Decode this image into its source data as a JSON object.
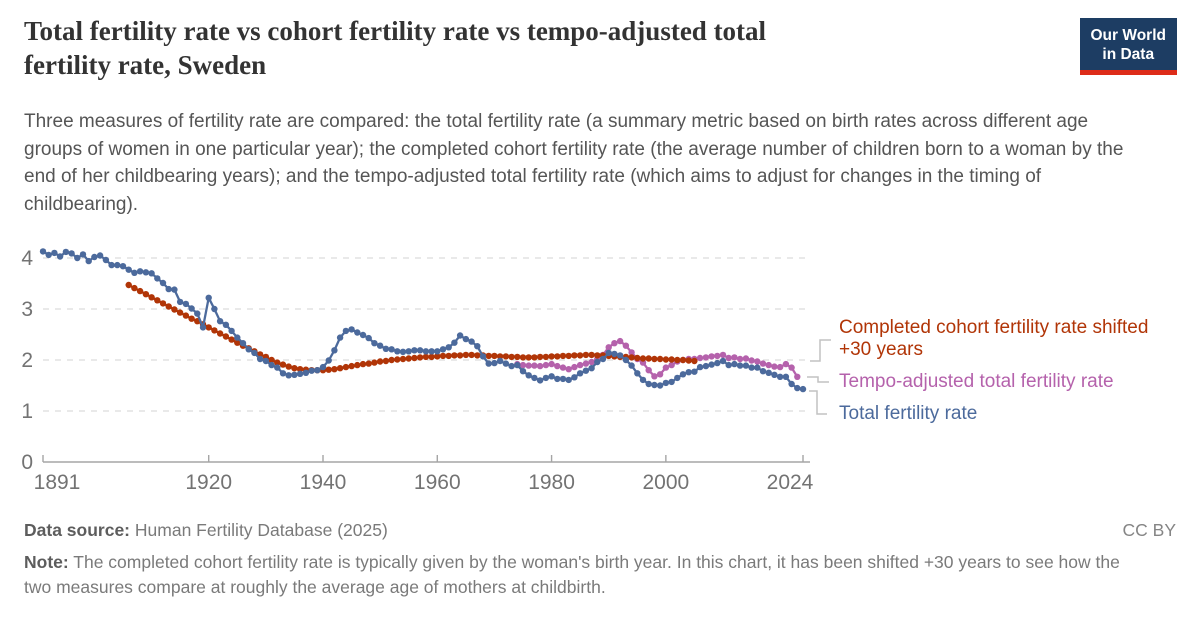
{
  "header": {
    "title_line1": "Total fertility rate vs cohort fertility rate vs tempo-adjusted total",
    "title_line2": "fertility rate, Sweden",
    "subtitle": "Three measures of fertility rate are compared: the total fertility rate (a summary metric based on birth rates across different age groups of women in one particular year); the completed cohort fertility rate (the average number of children born to a woman by the end of her childbearing years); and the tempo-adjusted total fertility rate (which aims to adjust for changes in the timing of childbearing)."
  },
  "logo": {
    "line1": "Our World",
    "line2": "in Data",
    "bg_color": "#1d3d63",
    "bar_color": "#dd2c19"
  },
  "footer": {
    "data_source_label": "Data source:",
    "data_source": "Human Fertility Database (2025)",
    "license": "CC BY",
    "note_label": "Note:",
    "note": "The completed cohort fertility rate is typically given by the woman's birth year. In this chart, it has been shifted +30 years to see how the two measures compare at roughly the average age of mothers at childbirth."
  },
  "chart_data": {
    "type": "line",
    "title": "Total fertility rate vs cohort fertility rate vs tempo-adjusted total fertility rate, Sweden",
    "xlabel": "",
    "ylabel": "",
    "x_range": [
      1891,
      2024
    ],
    "ylim": [
      0,
      4.2
    ],
    "x_ticks": [
      1891,
      1920,
      1940,
      1960,
      1980,
      2000,
      2024
    ],
    "y_ticks": [
      0,
      1,
      2,
      3,
      4
    ],
    "grid": true,
    "legend_position": "right",
    "legend": [
      {
        "label": "Completed cohort fertility rate shifted +30 years",
        "color": "#b13507"
      },
      {
        "label": "Tempo-adjusted total fertility rate",
        "color": "#b562ac"
      },
      {
        "label": "Total fertility rate",
        "color": "#4c6a9c"
      }
    ],
    "series": [
      {
        "name": "Tempo-adjusted total fertility rate",
        "color": "#b562ac",
        "points": [
          [
            1974,
            1.92
          ],
          [
            1975,
            1.9
          ],
          [
            1976,
            1.89
          ],
          [
            1977,
            1.89
          ],
          [
            1978,
            1.88
          ],
          [
            1979,
            1.9
          ],
          [
            1980,
            1.92
          ],
          [
            1981,
            1.88
          ],
          [
            1982,
            1.85
          ],
          [
            1983,
            1.82
          ],
          [
            1984,
            1.86
          ],
          [
            1985,
            1.9
          ],
          [
            1986,
            1.93
          ],
          [
            1987,
            1.96
          ],
          [
            1988,
            2.02
          ],
          [
            1989,
            2.1
          ],
          [
            1990,
            2.25
          ],
          [
            1991,
            2.33
          ],
          [
            1992,
            2.37
          ],
          [
            1993,
            2.28
          ],
          [
            1994,
            2.15
          ],
          [
            1995,
            2.02
          ],
          [
            1996,
            1.95
          ],
          [
            1997,
            1.8
          ],
          [
            1998,
            1.68
          ],
          [
            1999,
            1.72
          ],
          [
            2000,
            1.85
          ],
          [
            2001,
            1.9
          ],
          [
            2002,
            1.97
          ],
          [
            2003,
            2.0
          ],
          [
            2004,
            2.02
          ],
          [
            2005,
            2.02
          ],
          [
            2006,
            2.04
          ],
          [
            2007,
            2.05
          ],
          [
            2008,
            2.07
          ],
          [
            2009,
            2.08
          ],
          [
            2010,
            2.1
          ],
          [
            2011,
            2.04
          ],
          [
            2012,
            2.05
          ],
          [
            2013,
            2.02
          ],
          [
            2014,
            2.03
          ],
          [
            2015,
            1.99
          ],
          [
            2016,
            1.97
          ],
          [
            2017,
            1.93
          ],
          [
            2018,
            1.9
          ],
          [
            2019,
            1.87
          ],
          [
            2020,
            1.86
          ],
          [
            2021,
            1.92
          ],
          [
            2022,
            1.85
          ],
          [
            2023,
            1.67
          ]
        ]
      },
      {
        "name": "Completed cohort fertility rate shifted +30 years",
        "color": "#b13507",
        "points": [
          [
            1906,
            3.47
          ],
          [
            1907,
            3.41
          ],
          [
            1908,
            3.35
          ],
          [
            1909,
            3.29
          ],
          [
            1910,
            3.23
          ],
          [
            1911,
            3.17
          ],
          [
            1912,
            3.11
          ],
          [
            1913,
            3.05
          ],
          [
            1914,
            2.99
          ],
          [
            1915,
            2.93
          ],
          [
            1916,
            2.87
          ],
          [
            1917,
            2.81
          ],
          [
            1918,
            2.76
          ],
          [
            1919,
            2.7
          ],
          [
            1920,
            2.64
          ],
          [
            1921,
            2.58
          ],
          [
            1922,
            2.52
          ],
          [
            1923,
            2.46
          ],
          [
            1924,
            2.4
          ],
          [
            1925,
            2.34
          ],
          [
            1926,
            2.28
          ],
          [
            1927,
            2.23
          ],
          [
            1928,
            2.17
          ],
          [
            1929,
            2.11
          ],
          [
            1930,
            2.06
          ],
          [
            1931,
            2.0
          ],
          [
            1932,
            1.95
          ],
          [
            1933,
            1.91
          ],
          [
            1934,
            1.87
          ],
          [
            1935,
            1.84
          ],
          [
            1936,
            1.82
          ],
          [
            1937,
            1.81
          ],
          [
            1938,
            1.8
          ],
          [
            1939,
            1.8
          ],
          [
            1940,
            1.8
          ],
          [
            1941,
            1.81
          ],
          [
            1942,
            1.82
          ],
          [
            1943,
            1.84
          ],
          [
            1944,
            1.86
          ],
          [
            1945,
            1.88
          ],
          [
            1946,
            1.9
          ],
          [
            1947,
            1.92
          ],
          [
            1948,
            1.93
          ],
          [
            1949,
            1.95
          ],
          [
            1950,
            1.97
          ],
          [
            1951,
            1.98
          ],
          [
            1952,
            2.0
          ],
          [
            1953,
            2.01
          ],
          [
            1954,
            2.02
          ],
          [
            1955,
            2.03
          ],
          [
            1956,
            2.04
          ],
          [
            1957,
            2.05
          ],
          [
            1958,
            2.06
          ],
          [
            1959,
            2.06
          ],
          [
            1960,
            2.07
          ],
          [
            1961,
            2.08
          ],
          [
            1962,
            2.08
          ],
          [
            1963,
            2.09
          ],
          [
            1964,
            2.09
          ],
          [
            1965,
            2.1
          ],
          [
            1966,
            2.1
          ],
          [
            1967,
            2.09
          ],
          [
            1968,
            2.09
          ],
          [
            1969,
            2.08
          ],
          [
            1970,
            2.08
          ],
          [
            1971,
            2.07
          ],
          [
            1972,
            2.07
          ],
          [
            1973,
            2.06
          ],
          [
            1974,
            2.06
          ],
          [
            1975,
            2.05
          ],
          [
            1976,
            2.05
          ],
          [
            1977,
            2.05
          ],
          [
            1978,
            2.06
          ],
          [
            1979,
            2.06
          ],
          [
            1980,
            2.07
          ],
          [
            1981,
            2.07
          ],
          [
            1982,
            2.08
          ],
          [
            1983,
            2.08
          ],
          [
            1984,
            2.09
          ],
          [
            1985,
            2.09
          ],
          [
            1986,
            2.1
          ],
          [
            1987,
            2.1
          ],
          [
            1988,
            2.09
          ],
          [
            1989,
            2.09
          ],
          [
            1990,
            2.08
          ],
          [
            1991,
            2.07
          ],
          [
            1992,
            2.06
          ],
          [
            1993,
            2.06
          ],
          [
            1994,
            2.05
          ],
          [
            1995,
            2.04
          ],
          [
            1996,
            2.03
          ],
          [
            1997,
            2.03
          ],
          [
            1998,
            2.02
          ],
          [
            1999,
            2.02
          ],
          [
            2000,
            2.01
          ],
          [
            2001,
            2.01
          ],
          [
            2002,
            2.0
          ],
          [
            2003,
            2.0
          ],
          [
            2004,
            1.99
          ],
          [
            2005,
            1.98
          ]
        ]
      },
      {
        "name": "Total fertility rate",
        "color": "#4c6a9c",
        "points": [
          [
            1891,
            4.13
          ],
          [
            1892,
            4.06
          ],
          [
            1893,
            4.1
          ],
          [
            1894,
            4.03
          ],
          [
            1895,
            4.12
          ],
          [
            1896,
            4.09
          ],
          [
            1897,
            4.0
          ],
          [
            1898,
            4.07
          ],
          [
            1899,
            3.94
          ],
          [
            1900,
            4.02
          ],
          [
            1901,
            4.05
          ],
          [
            1902,
            3.96
          ],
          [
            1903,
            3.86
          ],
          [
            1904,
            3.86
          ],
          [
            1905,
            3.84
          ],
          [
            1906,
            3.77
          ],
          [
            1907,
            3.71
          ],
          [
            1908,
            3.74
          ],
          [
            1909,
            3.72
          ],
          [
            1910,
            3.7
          ],
          [
            1911,
            3.6
          ],
          [
            1912,
            3.51
          ],
          [
            1913,
            3.39
          ],
          [
            1914,
            3.38
          ],
          [
            1915,
            3.14
          ],
          [
            1916,
            3.1
          ],
          [
            1917,
            3.01
          ],
          [
            1918,
            2.91
          ],
          [
            1919,
            2.64
          ],
          [
            1920,
            3.22
          ],
          [
            1921,
            3.0
          ],
          [
            1922,
            2.76
          ],
          [
            1923,
            2.69
          ],
          [
            1924,
            2.57
          ],
          [
            1925,
            2.44
          ],
          [
            1926,
            2.33
          ],
          [
            1927,
            2.21
          ],
          [
            1928,
            2.14
          ],
          [
            1929,
            2.02
          ],
          [
            1930,
            1.98
          ],
          [
            1931,
            1.9
          ],
          [
            1932,
            1.85
          ],
          [
            1933,
            1.74
          ],
          [
            1934,
            1.7
          ],
          [
            1935,
            1.71
          ],
          [
            1936,
            1.73
          ],
          [
            1937,
            1.75
          ],
          [
            1938,
            1.79
          ],
          [
            1939,
            1.8
          ],
          [
            1940,
            1.86
          ],
          [
            1941,
            1.99
          ],
          [
            1942,
            2.19
          ],
          [
            1943,
            2.44
          ],
          [
            1944,
            2.57
          ],
          [
            1945,
            2.6
          ],
          [
            1946,
            2.54
          ],
          [
            1947,
            2.49
          ],
          [
            1948,
            2.43
          ],
          [
            1949,
            2.33
          ],
          [
            1950,
            2.28
          ],
          [
            1951,
            2.22
          ],
          [
            1952,
            2.21
          ],
          [
            1953,
            2.17
          ],
          [
            1954,
            2.16
          ],
          [
            1955,
            2.17
          ],
          [
            1956,
            2.19
          ],
          [
            1957,
            2.19
          ],
          [
            1958,
            2.17
          ],
          [
            1959,
            2.17
          ],
          [
            1960,
            2.17
          ],
          [
            1961,
            2.21
          ],
          [
            1962,
            2.25
          ],
          [
            1963,
            2.34
          ],
          [
            1964,
            2.48
          ],
          [
            1965,
            2.41
          ],
          [
            1966,
            2.36
          ],
          [
            1967,
            2.27
          ],
          [
            1968,
            2.07
          ],
          [
            1969,
            1.93
          ],
          [
            1970,
            1.94
          ],
          [
            1971,
            1.98
          ],
          [
            1972,
            1.93
          ],
          [
            1973,
            1.88
          ],
          [
            1974,
            1.9
          ],
          [
            1975,
            1.78
          ],
          [
            1976,
            1.7
          ],
          [
            1977,
            1.65
          ],
          [
            1978,
            1.6
          ],
          [
            1979,
            1.65
          ],
          [
            1980,
            1.68
          ],
          [
            1981,
            1.63
          ],
          [
            1982,
            1.63
          ],
          [
            1983,
            1.61
          ],
          [
            1984,
            1.66
          ],
          [
            1985,
            1.74
          ],
          [
            1986,
            1.79
          ],
          [
            1987,
            1.84
          ],
          [
            1988,
            1.96
          ],
          [
            1989,
            2.02
          ],
          [
            1990,
            2.14
          ],
          [
            1991,
            2.12
          ],
          [
            1992,
            2.09
          ],
          [
            1993,
            2.0
          ],
          [
            1994,
            1.89
          ],
          [
            1995,
            1.74
          ],
          [
            1996,
            1.61
          ],
          [
            1997,
            1.53
          ],
          [
            1998,
            1.51
          ],
          [
            1999,
            1.5
          ],
          [
            2000,
            1.55
          ],
          [
            2001,
            1.57
          ],
          [
            2002,
            1.65
          ],
          [
            2003,
            1.72
          ],
          [
            2004,
            1.76
          ],
          [
            2005,
            1.77
          ],
          [
            2006,
            1.86
          ],
          [
            2007,
            1.88
          ],
          [
            2008,
            1.91
          ],
          [
            2009,
            1.94
          ],
          [
            2010,
            1.98
          ],
          [
            2011,
            1.9
          ],
          [
            2012,
            1.92
          ],
          [
            2013,
            1.89
          ],
          [
            2014,
            1.89
          ],
          [
            2015,
            1.85
          ],
          [
            2016,
            1.85
          ],
          [
            2017,
            1.78
          ],
          [
            2018,
            1.75
          ],
          [
            2019,
            1.71
          ],
          [
            2020,
            1.67
          ],
          [
            2021,
            1.67
          ],
          [
            2022,
            1.53
          ],
          [
            2023,
            1.45
          ],
          [
            2024,
            1.43
          ]
        ]
      }
    ]
  }
}
